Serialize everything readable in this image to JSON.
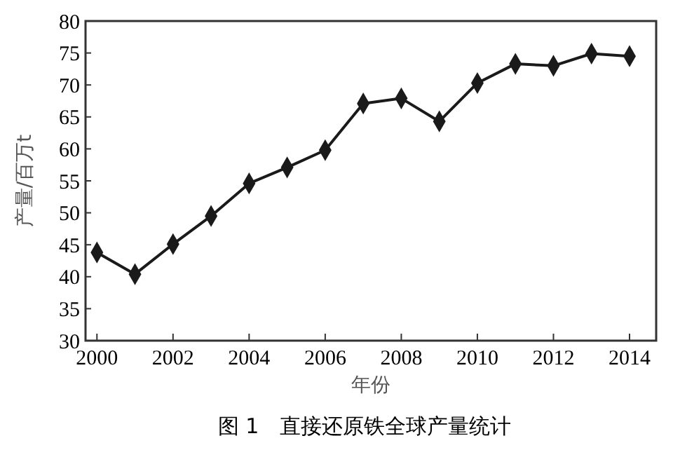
{
  "chart_data": {
    "type": "line",
    "title": "图 1　直接还原铁全球产量统计",
    "xlabel": "年份",
    "ylabel": "产量/百万t",
    "x": [
      2000,
      2001,
      2002,
      2003,
      2004,
      2005,
      2006,
      2007,
      2008,
      2009,
      2010,
      2011,
      2012,
      2013,
      2014
    ],
    "series": [
      {
        "color": "#1a1a1a",
        "values": [
          43.8,
          40.4,
          45.1,
          49.5,
          54.6,
          57.1,
          59.8,
          67.1,
          67.9,
          64.3,
          70.3,
          73.3,
          73.0,
          74.9,
          74.5
        ]
      }
    ],
    "xlim": [
      1999.7,
      2014.7
    ],
    "xticks": [
      2000,
      2002,
      2004,
      2006,
      2008,
      2010,
      2012,
      2014
    ],
    "ylim": [
      30,
      80
    ],
    "yticks": [
      30,
      35,
      40,
      45,
      50,
      55,
      60,
      65,
      70,
      75,
      80
    ],
    "grid": false,
    "marker": "diamond",
    "line_style": "solid"
  }
}
